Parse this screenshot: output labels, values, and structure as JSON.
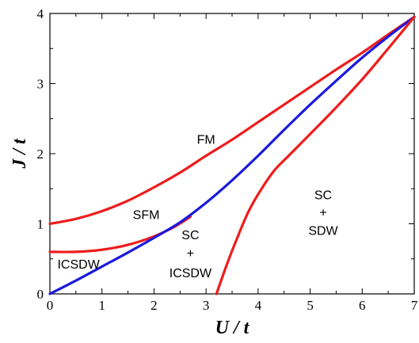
{
  "chart_data": {
    "type": "line",
    "xlabel": "U / t",
    "ylabel": "J / t",
    "xlim": [
      0,
      7
    ],
    "ylim": [
      0,
      4
    ],
    "xticks": [
      0,
      1,
      2,
      3,
      4,
      5,
      6,
      7
    ],
    "yticks": [
      0,
      1,
      2,
      3,
      4
    ],
    "grid": false,
    "colors": {
      "red": "#ee1c1c",
      "blue": "#1a1adc"
    },
    "series": [
      {
        "color": "red",
        "points": [
          [
            0,
            1.0
          ],
          [
            0.5,
            1.07
          ],
          [
            1,
            1.18
          ],
          [
            1.5,
            1.33
          ],
          [
            2,
            1.52
          ],
          [
            2.5,
            1.73
          ],
          [
            3,
            1.97
          ],
          [
            3.5,
            2.2
          ],
          [
            4,
            2.45
          ],
          [
            4.5,
            2.7
          ],
          [
            5,
            2.95
          ],
          [
            5.5,
            3.2
          ],
          [
            6,
            3.44
          ],
          [
            6.5,
            3.7
          ],
          [
            7,
            3.95
          ]
        ]
      },
      {
        "color": "red",
        "points": [
          [
            0,
            0.6
          ],
          [
            0.5,
            0.6
          ],
          [
            1,
            0.63
          ],
          [
            1.5,
            0.7
          ],
          [
            2,
            0.82
          ],
          [
            2.4,
            0.96
          ],
          [
            2.7,
            1.1
          ]
        ]
      },
      {
        "color": "blue",
        "points": [
          [
            0,
            0.0
          ],
          [
            0.5,
            0.19
          ],
          [
            1,
            0.39
          ],
          [
            1.5,
            0.59
          ],
          [
            2,
            0.8
          ],
          [
            2.5,
            1.02
          ],
          [
            3,
            1.3
          ],
          [
            3.5,
            1.62
          ],
          [
            4,
            1.97
          ],
          [
            4.5,
            2.34
          ],
          [
            5,
            2.7
          ],
          [
            5.5,
            3.04
          ],
          [
            6,
            3.37
          ],
          [
            6.5,
            3.67
          ],
          [
            7,
            3.95
          ]
        ]
      },
      {
        "color": "red",
        "points": [
          [
            3.2,
            0.0
          ],
          [
            3.4,
            0.42
          ],
          [
            3.6,
            0.8
          ],
          [
            3.8,
            1.15
          ],
          [
            4,
            1.42
          ],
          [
            4.3,
            1.75
          ],
          [
            4.6,
            1.98
          ],
          [
            5,
            2.28
          ],
          [
            5.5,
            2.66
          ],
          [
            6,
            3.06
          ],
          [
            6.5,
            3.5
          ],
          [
            7,
            3.95
          ]
        ]
      }
    ],
    "annotations": [
      {
        "text": "FM",
        "x": 3.0,
        "y": 2.14
      },
      {
        "text": "SFM",
        "x": 1.85,
        "y": 1.07
      },
      {
        "text": "SC",
        "x": 2.7,
        "y": 0.78
      },
      {
        "text": "+",
        "x": 2.7,
        "y": 0.52
      },
      {
        "text": "ICSDW",
        "x": 2.7,
        "y": 0.24
      },
      {
        "text": "ICSDW",
        "x": 0.55,
        "y": 0.36
      },
      {
        "text": "SC",
        "x": 5.25,
        "y": 1.35
      },
      {
        "text": "+",
        "x": 5.25,
        "y": 1.1
      },
      {
        "text": "SDW",
        "x": 5.25,
        "y": 0.84
      }
    ]
  }
}
